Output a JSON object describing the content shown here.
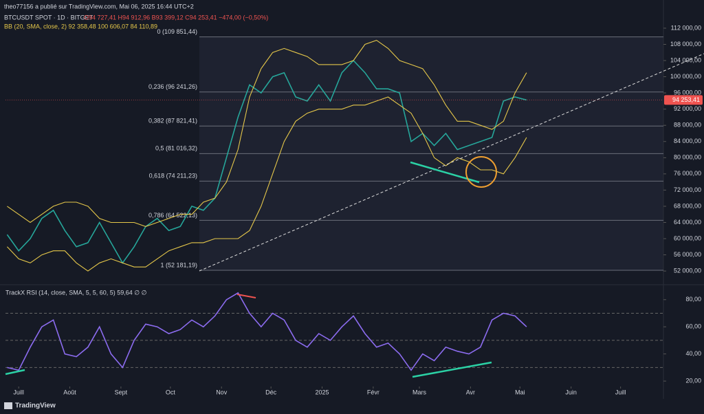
{
  "header": {
    "published": "theo77156 a publié sur TradingView.com, Mai 06, 2025 16:44 UTC+2",
    "logo": "TradingView"
  },
  "chart_data": [
    {
      "type": "line",
      "title": "BTCUSDT SPOT · 1D · BITGET",
      "ohlc": "O94 727,41 H94 912,96 B93 399,12 C94 253,41 −474,00 (−0,50%)",
      "indicator": "BB (20, SMA, close, 2) 92 358,48 100 606,07 84 110,89",
      "x": [
        -7,
        0,
        7,
        14,
        21,
        28,
        35,
        42,
        49,
        56,
        63,
        70,
        77,
        84,
        91,
        98,
        105,
        112,
        119,
        126,
        133,
        140,
        147,
        154,
        161,
        168,
        175,
        182,
        189,
        196,
        203,
        210,
        217,
        224,
        231,
        238,
        245,
        252,
        259,
        266,
        273,
        280,
        287,
        294,
        301,
        308
      ],
      "xlim": [
        -8,
        391
      ],
      "ylim": [
        49300,
        114200
      ],
      "yticks": [
        {
          "value": 52000,
          "label": "52 000,00"
        },
        {
          "value": 56000,
          "label": "56 000,00"
        },
        {
          "value": 60000,
          "label": "60 000,00"
        },
        {
          "value": 64000,
          "label": "64 000,00"
        },
        {
          "value": 68000,
          "label": "68 000,00"
        },
        {
          "value": 72000,
          "label": "72 000,00"
        },
        {
          "value": 76000,
          "label": "76 000,00"
        },
        {
          "value": 80000,
          "label": "80 000,00"
        },
        {
          "value": 84000,
          "label": "84 000,00"
        },
        {
          "value": 88000,
          "label": "88 000,00"
        },
        {
          "value": 92000,
          "label": "92 000,00"
        },
        {
          "value": 96000,
          "label": "96 000,00"
        },
        {
          "value": 100000,
          "label": "100 000,00"
        },
        {
          "value": 104000,
          "label": "104 000,00"
        },
        {
          "value": 108000,
          "label": "108 000,00"
        },
        {
          "value": 112000,
          "label": "112 000,00"
        }
      ],
      "series": [
        {
          "color": "#26a69a",
          "values": [
            61000,
            57000,
            60000,
            65000,
            67000,
            62000,
            58000,
            59000,
            64000,
            59000,
            54000,
            58000,
            63000,
            65000,
            62000,
            63000,
            68000,
            67000,
            70000,
            80000,
            90000,
            98000,
            96000,
            100000,
            101000,
            95000,
            94000,
            98000,
            94000,
            101000,
            104000,
            101000,
            97000,
            97000,
            96000,
            84000,
            86000,
            83000,
            86000,
            82000,
            83000,
            84000,
            85000,
            94000,
            95000,
            94253
          ]
        },
        {
          "color": "#e6c84a",
          "values": [
            68000,
            66000,
            64000,
            66000,
            68000,
            69000,
            69000,
            68000,
            65000,
            64000,
            64000,
            64000,
            63000,
            64000,
            65000,
            66000,
            66000,
            69000,
            70000,
            74000,
            82000,
            95000,
            102000,
            106000,
            107000,
            106000,
            105000,
            103000,
            103000,
            103000,
            104000,
            108000,
            109000,
            107000,
            104000,
            103000,
            102000,
            98000,
            93000,
            89000,
            89000,
            88000,
            87000,
            89000,
            96000,
            101000
          ]
        },
        {
          "color": "#e6c84a",
          "values": [
            58000,
            55000,
            54000,
            56000,
            57000,
            57000,
            54000,
            52000,
            54000,
            55000,
            54000,
            53000,
            53000,
            55000,
            57000,
            58000,
            59000,
            59000,
            60000,
            60000,
            60000,
            62000,
            68000,
            76000,
            84000,
            89000,
            91000,
            92000,
            92000,
            92000,
            93000,
            93000,
            94000,
            95000,
            93000,
            91000,
            86000,
            80000,
            78000,
            80000,
            79000,
            77000,
            77000,
            76000,
            80000,
            85000
          ]
        }
      ],
      "fib_levels": [
        {
          "value": 109851.44,
          "label": "0 (109 851,44)"
        },
        {
          "value": 96241.26,
          "label": "0,236 (96 241,26)"
        },
        {
          "value": 87821.41,
          "label": "0,382 (87 821,41)"
        },
        {
          "value": 81016.32,
          "label": "0,5 (81 016,32)"
        },
        {
          "value": 74211.23,
          "label": "0,618 (74 211,23)"
        },
        {
          "value": 64522.13,
          "label": "0,786 (64 522,13)"
        },
        {
          "value": 52181.19,
          "label": "1 (52 181,19)"
        }
      ],
      "last_price": {
        "value": 94253.41,
        "label": "94 253,41"
      }
    },
    {
      "type": "line",
      "title": "TrackX RSI (14, close, SMA, 5, 5, 60, 5) 59,64 ∅ ∅",
      "x": [
        -7,
        0,
        7,
        14,
        21,
        28,
        35,
        42,
        49,
        56,
        63,
        70,
        77,
        84,
        91,
        98,
        105,
        112,
        119,
        126,
        133,
        140,
        147,
        154,
        161,
        168,
        175,
        182,
        189,
        196,
        203,
        210,
        217,
        224,
        231,
        238,
        245,
        252,
        259,
        266,
        273,
        280,
        287,
        294,
        301,
        308
      ],
      "xlim": [
        -8,
        391
      ],
      "xticks": [
        {
          "value": 0,
          "label": "Juill"
        },
        {
          "value": 31,
          "label": "Août"
        },
        {
          "value": 62,
          "label": "Sept"
        },
        {
          "value": 92,
          "label": "Oct"
        },
        {
          "value": 123,
          "label": "Nov"
        },
        {
          "value": 153,
          "label": "Déc"
        },
        {
          "value": 184,
          "label": "2025"
        },
        {
          "value": 215,
          "label": "Févr"
        },
        {
          "value": 243,
          "label": "Mars"
        },
        {
          "value": 274,
          "label": "Avr"
        },
        {
          "value": 304,
          "label": "Mai"
        },
        {
          "value": 335,
          "label": "Juin"
        },
        {
          "value": 365,
          "label": "Juill"
        }
      ],
      "ylim": [
        16,
        89
      ],
      "yticks": [
        {
          "value": 20,
          "label": "20,00"
        },
        {
          "value": 40,
          "label": "40,00"
        },
        {
          "value": 60,
          "label": "60,00"
        },
        {
          "value": 80,
          "label": "80,00"
        }
      ],
      "levels": [
        70,
        50,
        30
      ],
      "series": [
        {
          "color": "#8c6cf0",
          "values": [
            30,
            28,
            45,
            60,
            65,
            40,
            38,
            45,
            60,
            40,
            30,
            50,
            62,
            60,
            55,
            58,
            65,
            60,
            68,
            80,
            85,
            70,
            60,
            70,
            65,
            50,
            45,
            55,
            50,
            60,
            68,
            55,
            45,
            48,
            40,
            28,
            40,
            35,
            45,
            42,
            40,
            45,
            65,
            70,
            68,
            60
          ]
        }
      ]
    }
  ]
}
